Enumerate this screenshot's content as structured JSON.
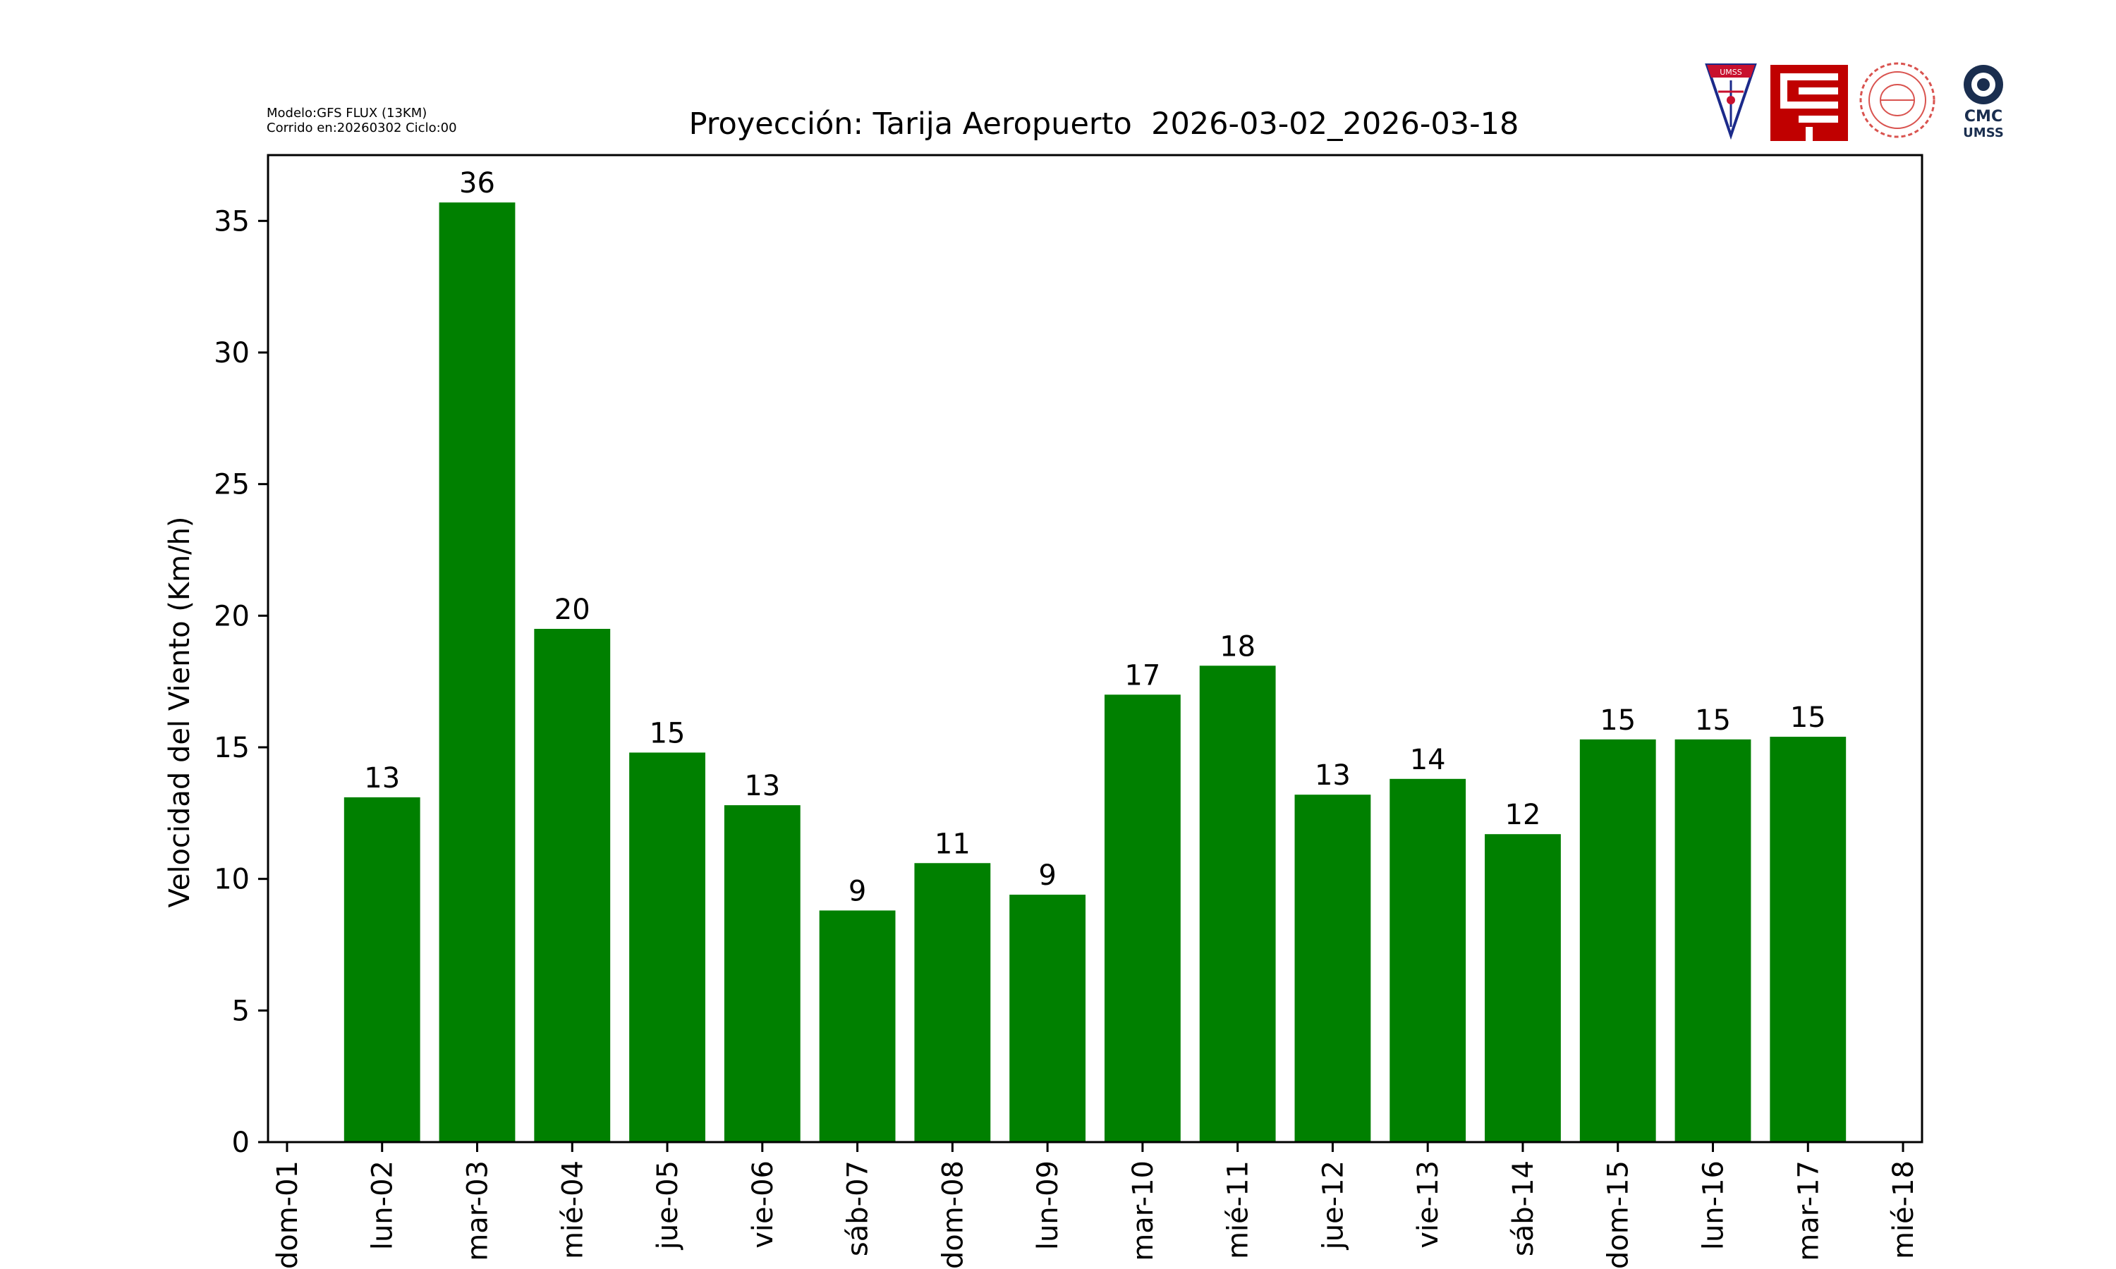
{
  "header": {
    "model_line": "Modelo:GFS FLUX (13KM)",
    "run_line": "Corrido en:20260302 Ciclo:00"
  },
  "logos": {
    "umss_text": "UMSS",
    "cmc_text": "CMC",
    "cmc_sub": "UMSS"
  },
  "chart_data": {
    "type": "bar",
    "title": "Proyección: Tarija Aeropuerto  2026-03-02_2026-03-18",
    "xlabel": "",
    "ylabel": "Velocidad del Viento (Km/h)",
    "ylim": [
      0,
      37.5
    ],
    "yticks": [
      0,
      5,
      10,
      15,
      20,
      25,
      30,
      35
    ],
    "xticks": [
      "dom-01",
      "lun-02",
      "mar-03",
      "mié-04",
      "jue-05",
      "vie-06",
      "sáb-07",
      "dom-08",
      "lun-09",
      "mar-10",
      "mié-11",
      "jue-12",
      "vie-13",
      "sáb-14",
      "dom-15",
      "lun-16",
      "mar-17",
      "mié-18"
    ],
    "categories": [
      "lun-02",
      "mar-03",
      "mié-04",
      "jue-05",
      "vie-06",
      "sáb-07",
      "dom-08",
      "lun-09",
      "mar-10",
      "mié-11",
      "jue-12",
      "vie-13",
      "sáb-14",
      "dom-15",
      "lun-16",
      "mar-17"
    ],
    "values": [
      13.1,
      35.7,
      19.5,
      14.8,
      12.8,
      8.8,
      10.6,
      9.4,
      17.0,
      18.1,
      13.2,
      13.8,
      11.7,
      15.3,
      15.3,
      15.4
    ],
    "labels": [
      "13",
      "36",
      "20",
      "15",
      "13",
      "9",
      "11",
      "9",
      "17",
      "18",
      "13",
      "14",
      "12",
      "15",
      "15",
      "15"
    ],
    "bar_color": "#008000",
    "grid": false,
    "legend": "none"
  }
}
